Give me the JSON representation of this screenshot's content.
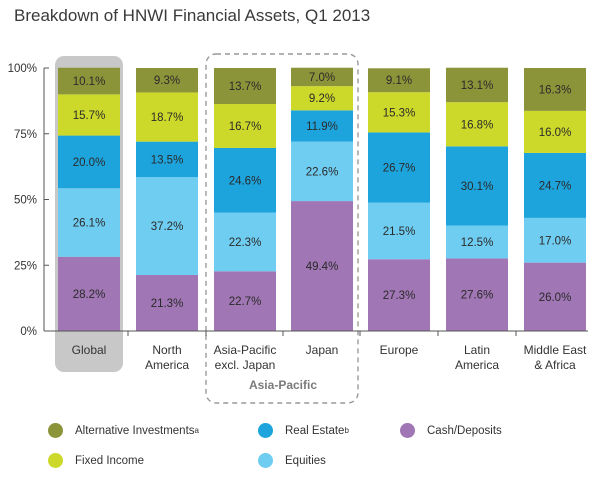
{
  "title": "Breakdown of HNWI Financial Assets, Q1 2013",
  "group_label": "Asia-Pacific",
  "colors": {
    "alternative": "#8c943a",
    "fixed_income": "#cdd92a",
    "real_estate": "#1ea4dc",
    "equities": "#6fcdf1",
    "cash": "#a076b4",
    "highlight": "#c8c8c8",
    "axis": "#555555"
  },
  "legend": [
    {
      "name": "Alternative Investments",
      "sup": "a",
      "color_key": "alternative"
    },
    {
      "name": "Real Estate",
      "sup": "b",
      "color_key": "real_estate"
    },
    {
      "name": "Cash/Deposits",
      "sup": "",
      "color_key": "cash"
    },
    {
      "name": "Fixed Income",
      "sup": "",
      "color_key": "fixed_income"
    },
    {
      "name": "Equities",
      "sup": "",
      "color_key": "equities"
    }
  ],
  "chart_data": {
    "type": "bar",
    "stacked": true,
    "title": "Breakdown of HNWI Financial Assets, Q1 2013",
    "categories": [
      "Global",
      "North America",
      "Asia-Pacific excl. Japan",
      "Japan",
      "Europe",
      "Latin America",
      "Middle East & Africa"
    ],
    "category_lines": [
      [
        "Global"
      ],
      [
        "North",
        "America"
      ],
      [
        "Asia-Pacific",
        "excl. Japan"
      ],
      [
        "Japan"
      ],
      [
        "Europe"
      ],
      [
        "Latin",
        "America"
      ],
      [
        "Middle East",
        "& Africa"
      ]
    ],
    "ylim": [
      0,
      100
    ],
    "yticks": [
      "0%",
      "25%",
      "50%",
      "75%",
      "100%"
    ],
    "ytick_values": [
      0,
      25,
      50,
      75,
      100
    ],
    "highlighted_category": "Global",
    "series": [
      {
        "name": "Cash/Deposits",
        "color_key": "cash",
        "values": [
          28.2,
          21.3,
          22.7,
          49.4,
          27.3,
          27.6,
          26.0
        ],
        "labels": [
          "28.2%",
          "21.3%",
          "22.7%",
          "49.4%",
          "27.3%",
          "27.6%",
          "26.0%"
        ]
      },
      {
        "name": "Equities",
        "color_key": "equities",
        "values": [
          26.1,
          37.2,
          22.3,
          22.6,
          21.5,
          12.5,
          17.0
        ],
        "labels": [
          "26.1%",
          "37.2%",
          "22.3%",
          "22.6%",
          "21.5%",
          "12.5%",
          "17.0%"
        ]
      },
      {
        "name": "Real Estate",
        "color_key": "real_estate",
        "values": [
          20.0,
          13.5,
          24.6,
          11.9,
          26.7,
          30.1,
          24.7
        ],
        "labels": [
          "20.0%",
          "13.5%",
          "24.6%",
          "11.9%",
          "26.7%",
          "30.1%",
          "24.7%"
        ]
      },
      {
        "name": "Fixed Income",
        "color_key": "fixed_income",
        "values": [
          15.7,
          18.7,
          16.7,
          9.2,
          15.3,
          16.8,
          16.0
        ],
        "labels": [
          "15.7%",
          "18.7%",
          "16.7%",
          "9.2%",
          "15.3%",
          "16.8%",
          "16.0%"
        ]
      },
      {
        "name": "Alternative Investments",
        "color_key": "alternative",
        "values": [
          10.1,
          9.3,
          13.7,
          7.0,
          9.1,
          13.1,
          16.3
        ],
        "labels": [
          "10.1%",
          "9.3%",
          "13.7%",
          "7.0%",
          "9.1%",
          "13.1%",
          "16.3%"
        ]
      }
    ]
  }
}
